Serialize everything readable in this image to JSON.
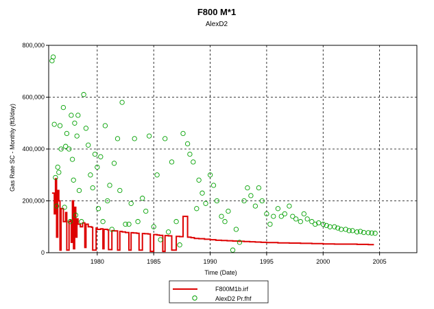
{
  "chart_data": {
    "type": "line",
    "title": "F800 M*1",
    "subtitle": "AlexD2",
    "xlabel": "Time (Date)",
    "ylabel": "Gas Rate SC - Monthly (ft3/day)",
    "xlim": [
      1975.7,
      2008.3
    ],
    "ylim": [
      0,
      800000
    ],
    "x_ticks": [
      1980,
      1985,
      1990,
      1995,
      2000,
      2005
    ],
    "x_tick_labels": [
      "1980",
      "1985",
      "1990",
      "1995",
      "2000",
      "2005"
    ],
    "y_ticks": [
      0,
      200000,
      400000,
      600000,
      800000
    ],
    "y_tick_labels": [
      "0",
      "200,000",
      "400,000",
      "600,000",
      "800,000"
    ],
    "grid": true,
    "legend_position": "bottom-center",
    "series": [
      {
        "name": "F800M1b.irf",
        "style": "line",
        "color": "#dd0000",
        "x": [
          1976.0,
          1976.2,
          1976.3,
          1976.4,
          1976.5,
          1976.6,
          1976.7,
          1976.8,
          1977.0,
          1977.2,
          1977.3,
          1977.5,
          1977.6,
          1977.7,
          1977.8,
          1977.9,
          1978.0,
          1978.1,
          1978.2,
          1978.3,
          1978.5,
          1978.7,
          1978.9,
          1979.0,
          1979.2,
          1979.5,
          1979.6,
          1979.9,
          1980.0,
          1980.3,
          1980.5,
          1980.6,
          1980.9,
          1981.0,
          1981.3,
          1981.5,
          1981.8,
          1982.0,
          1982.2,
          1982.5,
          1982.8,
          1983.0,
          1983.2,
          1983.5,
          1983.7,
          1984.0,
          1984.2,
          1984.5,
          1984.7,
          1985.0,
          1985.3,
          1985.5,
          1985.8,
          1986.0,
          1986.3,
          1986.6,
          1987.0,
          1987.3,
          1987.6,
          1988.0,
          1988.3,
          1988.6,
          1989.0,
          1989.5,
          1990.0,
          1990.5,
          1991.0,
          1991.5,
          1992.0,
          1992.5,
          1993.0,
          1993.5,
          1994.0,
          1994.5,
          1995.0,
          1996.0,
          1997.0,
          1998.0,
          1999.0,
          2000.0,
          2001.0,
          2002.0,
          2003.0,
          2004.0,
          2004.5
        ],
        "values": [
          230000,
          150000,
          285000,
          60000,
          240000,
          200000,
          10000,
          170000,
          120000,
          155000,
          10000,
          120000,
          125000,
          40000,
          200000,
          15000,
          175000,
          60000,
          130000,
          110000,
          100000,
          115000,
          20000,
          110000,
          100000,
          98000,
          10000,
          95000,
          90000,
          92000,
          15000,
          90000,
          88000,
          12000,
          85000,
          84000,
          10000,
          82000,
          80000,
          78000,
          10000,
          77000,
          76000,
          75000,
          10000,
          74000,
          73000,
          72000,
          5000,
          70000,
          68000,
          67000,
          5000,
          66000,
          65000,
          10000,
          63000,
          62000,
          140000,
          60000,
          58000,
          55000,
          54000,
          52000,
          50000,
          48000,
          47000,
          46000,
          45000,
          44000,
          43000,
          42000,
          41000,
          40000,
          39000,
          38000,
          37000,
          36000,
          35000,
          34000,
          33000,
          33000,
          32000,
          31000,
          31000
        ]
      },
      {
        "name": "AlexD2 Pr.fhf",
        "style": "scatter",
        "color": "#00a000",
        "x": [
          1976.0,
          1976.1,
          1976.2,
          1976.3,
          1976.4,
          1976.5,
          1976.6,
          1976.7,
          1976.8,
          1977.0,
          1977.1,
          1977.2,
          1977.3,
          1977.5,
          1977.6,
          1977.7,
          1977.8,
          1977.9,
          1978.0,
          1978.1,
          1978.2,
          1978.3,
          1978.4,
          1978.6,
          1978.8,
          1979.0,
          1979.2,
          1979.4,
          1979.6,
          1979.8,
          1980.0,
          1980.1,
          1980.3,
          1980.5,
          1980.7,
          1980.9,
          1981.1,
          1981.3,
          1981.5,
          1981.8,
          1982.0,
          1982.2,
          1982.5,
          1982.8,
          1983.0,
          1983.3,
          1983.6,
          1984.0,
          1984.3,
          1984.6,
          1985.0,
          1985.3,
          1985.6,
          1986.0,
          1986.3,
          1986.6,
          1987.0,
          1987.3,
          1987.6,
          1988.0,
          1988.2,
          1988.5,
          1988.8,
          1989.0,
          1989.3,
          1989.6,
          1990.0,
          1990.3,
          1990.6,
          1991.0,
          1991.3,
          1991.6,
          1992.0,
          1992.3,
          1992.6,
          1993.0,
          1993.3,
          1993.6,
          1994.0,
          1994.3,
          1994.6,
          1995.0,
          1995.3,
          1995.6,
          1996.0,
          1996.3,
          1996.6,
          1997.0,
          1997.3,
          1997.6,
          1998.0,
          1998.3,
          1998.6,
          1999.0,
          1999.3,
          1999.6,
          2000.0,
          2000.3,
          2000.6,
          2001.0,
          2001.3,
          2001.6,
          2002.0,
          2002.3,
          2002.6,
          2003.0,
          2003.3,
          2003.6,
          2004.0,
          2004.3,
          2004.6
        ],
        "values": [
          740000,
          755000,
          495000,
          290000,
          180000,
          330000,
          310000,
          490000,
          400000,
          560000,
          175000,
          410000,
          460000,
          400000,
          120000,
          530000,
          360000,
          280000,
          500000,
          145000,
          450000,
          530000,
          240000,
          120000,
          610000,
          480000,
          415000,
          300000,
          250000,
          380000,
          330000,
          170000,
          370000,
          120000,
          490000,
          200000,
          260000,
          90000,
          345000,
          440000,
          240000,
          580000,
          110000,
          110000,
          190000,
          440000,
          120000,
          210000,
          160000,
          450000,
          100000,
          300000,
          50000,
          440000,
          80000,
          350000,
          120000,
          30000,
          460000,
          420000,
          380000,
          350000,
          170000,
          280000,
          230000,
          190000,
          300000,
          260000,
          200000,
          140000,
          120000,
          160000,
          10000,
          90000,
          40000,
          200000,
          250000,
          220000,
          180000,
          250000,
          200000,
          150000,
          110000,
          140000,
          170000,
          140000,
          150000,
          180000,
          140000,
          130000,
          120000,
          150000,
          130000,
          120000,
          110000,
          115000,
          110000,
          105000,
          100000,
          100000,
          95000,
          90000,
          90000,
          85000,
          85000,
          80000,
          82000,
          78000,
          77000,
          76000,
          75000
        ]
      }
    ]
  }
}
